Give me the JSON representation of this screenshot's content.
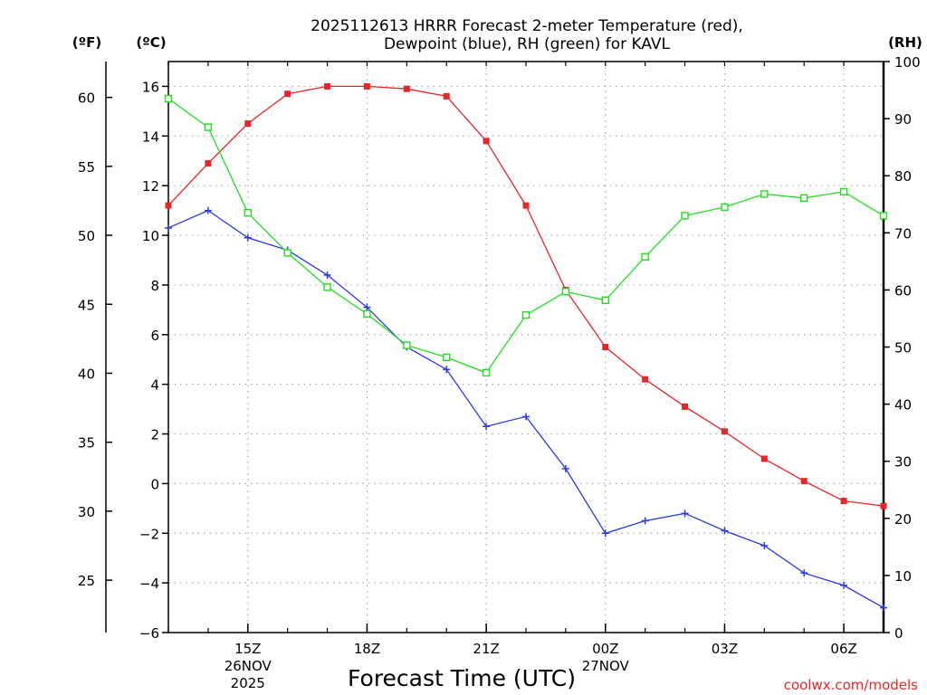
{
  "chart_data": {
    "type": "line",
    "title_line1": "2025112613 HRRR Forecast 2-meter Temperature (red),",
    "title_line2": "Dewpoint (blue), RH (green) for KAVL",
    "xlabel": "Forecast Time (UTC)",
    "credit": "coolwx.com/models",
    "unit_labels": {
      "fahrenheit": "(ºF)",
      "celsius": "(ºC)",
      "rh": "(RH)"
    },
    "x": [
      13,
      14,
      15,
      16,
      17,
      18,
      19,
      20,
      21,
      22,
      23,
      24,
      25,
      26,
      27,
      28,
      29,
      30,
      31
    ],
    "xlim": [
      13,
      31
    ],
    "x_ticks": [
      {
        "x": 15,
        "label": "15Z",
        "sub1": "26NOV",
        "sub2": "2025"
      },
      {
        "x": 18,
        "label": "18Z",
        "sub1": "",
        "sub2": ""
      },
      {
        "x": 21,
        "label": "21Z",
        "sub1": "",
        "sub2": ""
      },
      {
        "x": 24,
        "label": "00Z",
        "sub1": "27NOV",
        "sub2": ""
      },
      {
        "x": 27,
        "label": "03Z",
        "sub1": "",
        "sub2": ""
      },
      {
        "x": 30,
        "label": "06Z",
        "sub1": "",
        "sub2": ""
      }
    ],
    "celsius_axis": {
      "ylim": [
        -6,
        17
      ],
      "ticks": [
        16,
        14,
        12,
        10,
        8,
        6,
        4,
        2,
        0,
        -2,
        -4,
        -6
      ]
    },
    "fahrenheit_axis": {
      "ticks": [
        60,
        55,
        50,
        45,
        40,
        35,
        30,
        25
      ]
    },
    "rh_axis": {
      "ylim": [
        0,
        100
      ],
      "ticks": [
        100,
        90,
        80,
        70,
        60,
        50,
        40,
        30,
        20,
        10,
        0
      ]
    },
    "series": [
      {
        "name": "Temperature",
        "axis": "celsius",
        "color": "#e8262a",
        "marker": "filled-square",
        "values": [
          11.2,
          12.9,
          14.5,
          15.7,
          16.0,
          16.0,
          15.9,
          15.6,
          13.8,
          11.2,
          7.8,
          5.5,
          4.2,
          3.1,
          2.1,
          1.0,
          0.1,
          -0.7,
          -0.9
        ]
      },
      {
        "name": "Dewpoint",
        "axis": "celsius",
        "color": "#2a3be8",
        "marker": "plus",
        "values": [
          10.3,
          11.0,
          9.9,
          9.4,
          8.4,
          7.1,
          5.5,
          4.6,
          2.3,
          2.7,
          0.6,
          -2.0,
          -1.5,
          -1.2,
          -1.9,
          -2.5,
          -3.6,
          -4.1,
          -5.0
        ]
      },
      {
        "name": "RH",
        "axis": "rh",
        "color": "#22dd22",
        "marker": "open-square",
        "values": [
          93.5,
          88.5,
          73.5,
          66.5,
          60.5,
          55.8,
          50.3,
          48.2,
          45.5,
          55.6,
          59.7,
          58.2,
          65.8,
          73.0,
          74.5,
          76.8,
          76.1,
          77.2,
          73.0
        ]
      }
    ]
  }
}
